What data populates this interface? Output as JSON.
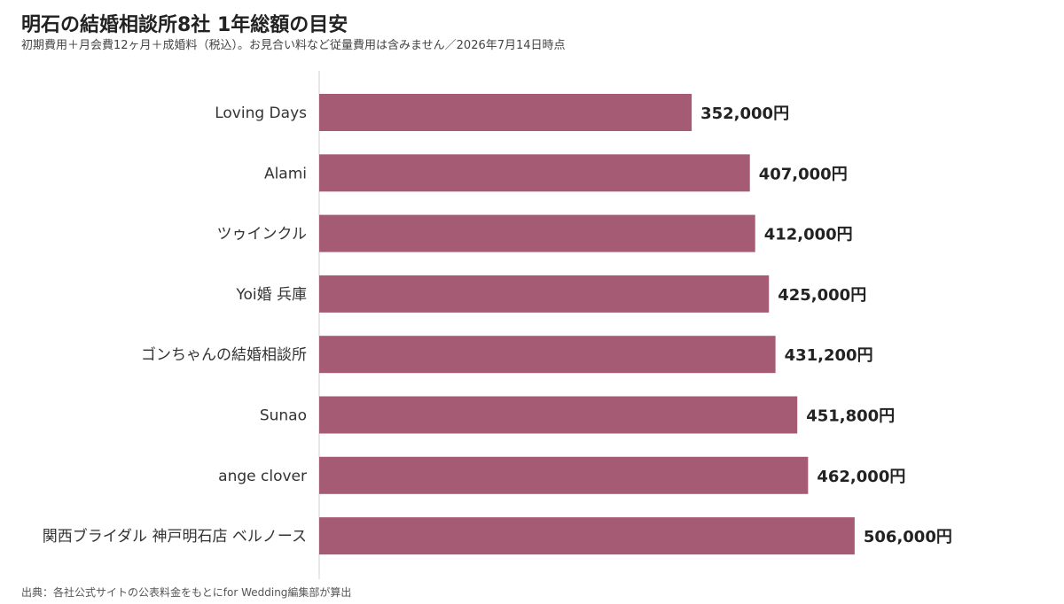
{
  "title": "明石の結婚相談所8社 1年総額の目安",
  "subtitle": "初期費用＋月会費12ヶ月＋成婚料（税込）。お見合い料など従量費用は含みません／2026年7月14日時点",
  "source": "出典：各社公式サイトの公表料金をもとにfor Wedding編集部が算出",
  "colors": {
    "bar": "#a55b73",
    "axis": "#d0d0d0",
    "category_text": "#333333",
    "value_text": "#222222"
  },
  "chart_data": {
    "type": "bar",
    "orientation": "horizontal",
    "categories": [
      "Loving Days",
      "Alami",
      "ツゥインクル",
      "Yoi婚 兵庫",
      "ゴンちゃんの結婚相談所",
      "Sunao",
      "ange clover",
      "関西ブライダル 神戸明石店 ベルノース"
    ],
    "values": [
      352000,
      407000,
      412000,
      425000,
      431200,
      451800,
      462000,
      506000
    ],
    "value_labels": [
      "352,000円",
      "407,000円",
      "412,000円",
      "425,000円",
      "431,200円",
      "451,800円",
      "462,000円",
      "506,000円"
    ],
    "xlim": [
      0,
      560000
    ],
    "grid": false,
    "legend": "none"
  }
}
